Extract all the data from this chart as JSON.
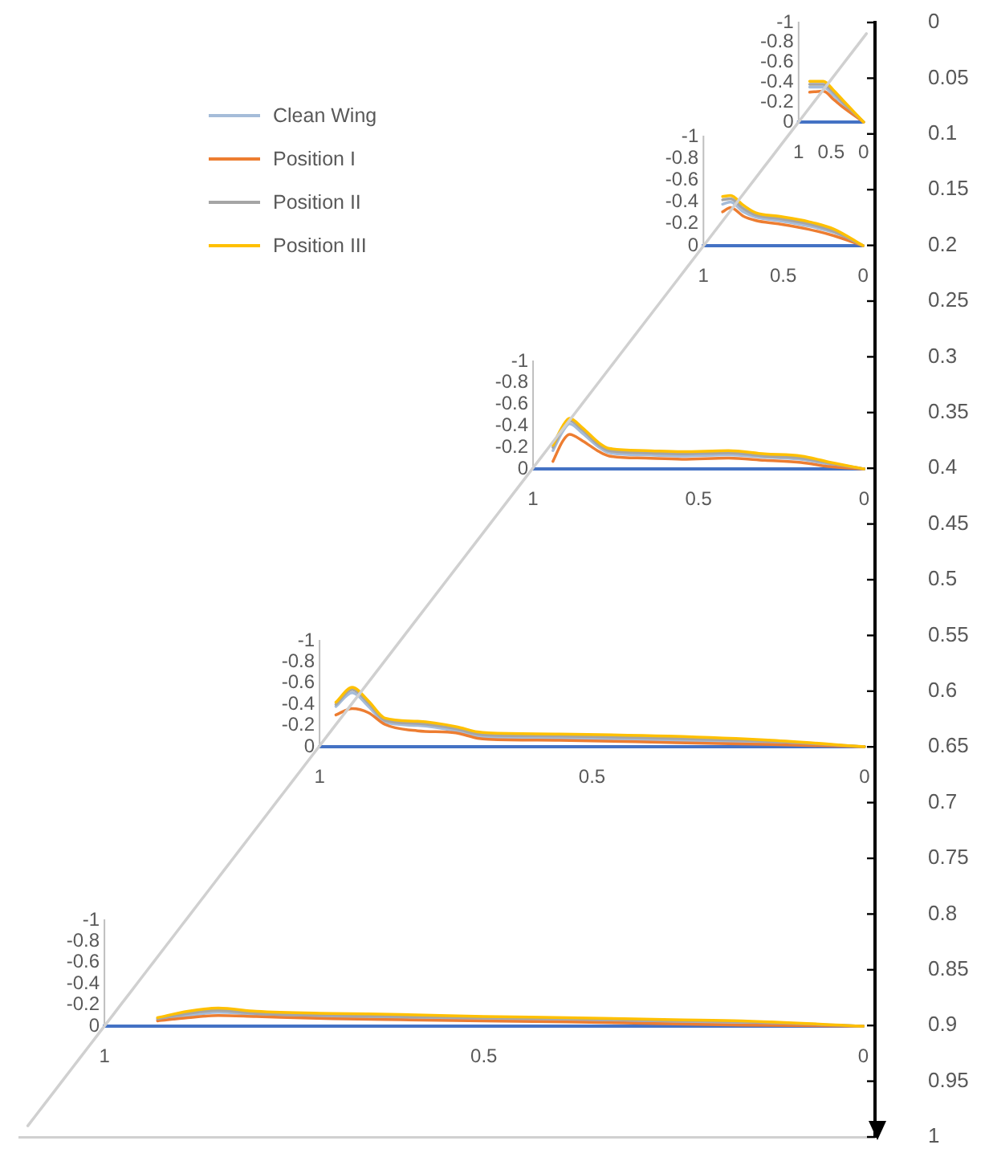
{
  "chart_data": [
    {
      "type": "line",
      "x": [
        0.83,
        0.62,
        0.45,
        0.32,
        0
      ],
      "xlim": [
        1,
        0
      ],
      "xticks": [
        1,
        0.5,
        0
      ],
      "ylim": [
        0,
        -1
      ],
      "yticks": [
        0,
        -0.2,
        -0.4,
        -0.6,
        -0.8,
        -1
      ],
      "series": [
        {
          "color": "#a5bcd9",
          "values": [
            -0.35,
            -0.35,
            -0.26,
            -0.18,
            0
          ]
        },
        {
          "color": "#ed7d31",
          "values": [
            -0.3,
            -0.31,
            -0.22,
            -0.15,
            0
          ]
        },
        {
          "color": "#a5a5a5",
          "values": [
            -0.38,
            -0.38,
            -0.29,
            -0.2,
            0
          ]
        },
        {
          "color": "#ffc000",
          "values": [
            -0.41,
            -0.41,
            -0.31,
            -0.22,
            0
          ]
        }
      ]
    },
    {
      "type": "line",
      "x": [
        0.88,
        0.83,
        0.75,
        0.67,
        0.53,
        0.34,
        0.18,
        0
      ],
      "xlim": [
        1,
        0
      ],
      "xticks": [
        1,
        0.5,
        0
      ],
      "ylim": [
        0,
        -1
      ],
      "yticks": [
        0,
        -0.2,
        -0.4,
        -0.6,
        -0.8,
        -1
      ],
      "legend": "left",
      "series": [
        {
          "name": "Clean Wing",
          "color": "#a5bcd9",
          "values": [
            -0.38,
            -0.4,
            -0.31,
            -0.26,
            -0.23,
            -0.18,
            -0.12,
            0
          ]
        },
        {
          "name": "Position I",
          "color": "#ed7d31",
          "values": [
            -0.31,
            -0.35,
            -0.27,
            -0.23,
            -0.2,
            -0.15,
            -0.09,
            0
          ]
        },
        {
          "name": "Position II",
          "color": "#a5a5a5",
          "values": [
            -0.42,
            -0.43,
            -0.34,
            -0.28,
            -0.25,
            -0.2,
            -0.13,
            0
          ]
        },
        {
          "name": "Position III",
          "color": "#ffc000",
          "values": [
            -0.45,
            -0.46,
            -0.37,
            -0.3,
            -0.27,
            -0.22,
            -0.15,
            0
          ]
        }
      ]
    },
    {
      "type": "line",
      "x": [
        0.94,
        0.91,
        0.89,
        0.85,
        0.8,
        0.77,
        0.66,
        0.55,
        0.41,
        0.3,
        0.19,
        0.1,
        0
      ],
      "xlim": [
        1,
        0
      ],
      "xticks": [
        1,
        0.5,
        0
      ],
      "ylim": [
        0,
        -1
      ],
      "yticks": [
        0,
        -0.2,
        -0.4,
        -0.6,
        -0.8,
        -1
      ],
      "series": [
        {
          "color": "#a5bcd9",
          "values": [
            -0.17,
            -0.35,
            -0.42,
            -0.33,
            -0.2,
            -0.15,
            -0.13,
            -0.12,
            -0.13,
            -0.11,
            -0.09,
            -0.04,
            0
          ]
        },
        {
          "color": "#ed7d31",
          "values": [
            -0.07,
            -0.26,
            -0.32,
            -0.26,
            -0.16,
            -0.12,
            -0.1,
            -0.09,
            -0.1,
            -0.08,
            -0.06,
            -0.02,
            0
          ]
        },
        {
          "color": "#a5a5a5",
          "values": [
            -0.2,
            -0.38,
            -0.45,
            -0.36,
            -0.22,
            -0.17,
            -0.15,
            -0.14,
            -0.15,
            -0.12,
            -0.1,
            -0.05,
            0
          ]
        },
        {
          "color": "#ffc000",
          "values": [
            -0.22,
            -0.4,
            -0.47,
            -0.38,
            -0.24,
            -0.19,
            -0.17,
            -0.16,
            -0.17,
            -0.14,
            -0.12,
            -0.06,
            0
          ]
        }
      ]
    },
    {
      "type": "line",
      "x": [
        0.97,
        0.94,
        0.91,
        0.88,
        0.82,
        0.75,
        0.71,
        0.69,
        0.56,
        0.36,
        0.17,
        0
      ],
      "xlim": [
        1,
        0
      ],
      "xticks": [
        1,
        0.5,
        0
      ],
      "ylim": [
        0,
        -1
      ],
      "yticks": [
        0,
        -0.2,
        -0.4,
        -0.6,
        -0.8,
        -1
      ],
      "series": [
        {
          "color": "#a5bcd9",
          "values": [
            -0.38,
            -0.51,
            -0.38,
            -0.23,
            -0.2,
            -0.15,
            -0.1,
            -0.09,
            -0.08,
            -0.06,
            -0.04,
            0
          ]
        },
        {
          "color": "#ed7d31",
          "values": [
            -0.3,
            -0.36,
            -0.32,
            -0.21,
            -0.15,
            -0.13,
            -0.08,
            -0.07,
            -0.06,
            -0.04,
            -0.02,
            0
          ]
        },
        {
          "color": "#a5a5a5",
          "values": [
            -0.4,
            -0.54,
            -0.41,
            -0.25,
            -0.22,
            -0.17,
            -0.12,
            -0.11,
            -0.1,
            -0.08,
            -0.05,
            0
          ]
        },
        {
          "color": "#ffc000",
          "values": [
            -0.42,
            -0.56,
            -0.43,
            -0.27,
            -0.24,
            -0.19,
            -0.14,
            -0.13,
            -0.12,
            -0.1,
            -0.06,
            0
          ]
        }
      ]
    },
    {
      "type": "line",
      "x": [
        0.93,
        0.89,
        0.85,
        0.8,
        0.7,
        0.61,
        0.5,
        0.39,
        0.25,
        0.16,
        0
      ],
      "xlim": [
        1,
        0
      ],
      "xticks": [
        1,
        0.5,
        0
      ],
      "ylim": [
        0,
        -1
      ],
      "yticks": [
        0,
        -0.2,
        -0.4,
        -0.6,
        -0.8,
        -1
      ],
      "series": [
        {
          "color": "#a5bcd9",
          "values": [
            -0.06,
            -0.1,
            -0.13,
            -0.11,
            -0.09,
            -0.08,
            -0.07,
            -0.06,
            -0.04,
            -0.03,
            0
          ]
        },
        {
          "color": "#ed7d31",
          "values": [
            -0.05,
            -0.08,
            -0.1,
            -0.09,
            -0.07,
            -0.06,
            -0.05,
            -0.04,
            -0.02,
            -0.01,
            0
          ]
        },
        {
          "color": "#a5a5a5",
          "values": [
            -0.07,
            -0.12,
            -0.15,
            -0.12,
            -0.1,
            -0.09,
            -0.08,
            -0.07,
            -0.05,
            -0.04,
            0
          ]
        },
        {
          "color": "#ffc000",
          "values": [
            -0.08,
            -0.14,
            -0.17,
            -0.14,
            -0.12,
            -0.11,
            -0.09,
            -0.08,
            -0.06,
            -0.05,
            0
          ]
        }
      ]
    },
    {
      "type": "line",
      "categories": [
        null,
        null,
        null,
        null,
        null,
        null,
        null,
        null,
        null,
        null,
        null,
        null,
        null,
        null,
        null,
        null,
        null,
        null,
        null,
        null,
        null,
        null,
        null,
        null,
        null,
        null,
        null,
        null,
        null,
        null,
        null,
        null,
        null,
        null,
        null,
        null,
        null,
        null,
        null,
        null,
        null,
        null,
        null,
        null,
        null,
        null,
        null,
        null,
        null,
        null
      ],
      "tick_labels": "y",
      "ylim": [
        1,
        0
      ],
      "yticks": [
        0,
        0.05,
        0.1,
        0.15,
        0.2,
        0.25,
        0.3,
        0.35,
        0.4,
        0.45,
        0.5,
        0.55,
        0.6,
        0.65,
        0.7,
        0.75,
        0.8,
        0.85,
        0.9,
        0.95,
        1
      ],
      "series": [
        {
          "color": "#d0d0d0",
          "values": [
            0.99,
            0.97,
            0.95,
            0.93,
            0.91,
            0.89,
            0.87,
            0.85,
            0.83,
            0.81,
            0.79,
            0.77,
            0.75,
            0.73,
            0.71,
            0.69,
            0.67,
            0.65,
            0.63,
            0.61,
            0.59,
            0.57,
            0.55,
            0.53,
            0.51,
            0.49,
            0.47,
            0.45,
            0.43,
            0.41,
            0.39,
            0.37,
            0.35,
            0.33,
            0.31,
            0.29,
            0.27,
            0.25,
            0.23,
            0.21,
            0.19,
            0.17,
            0.15,
            0.13,
            0.11,
            0.09,
            0.07,
            0.05,
            0.03,
            0.01
          ]
        }
      ]
    }
  ]
}
